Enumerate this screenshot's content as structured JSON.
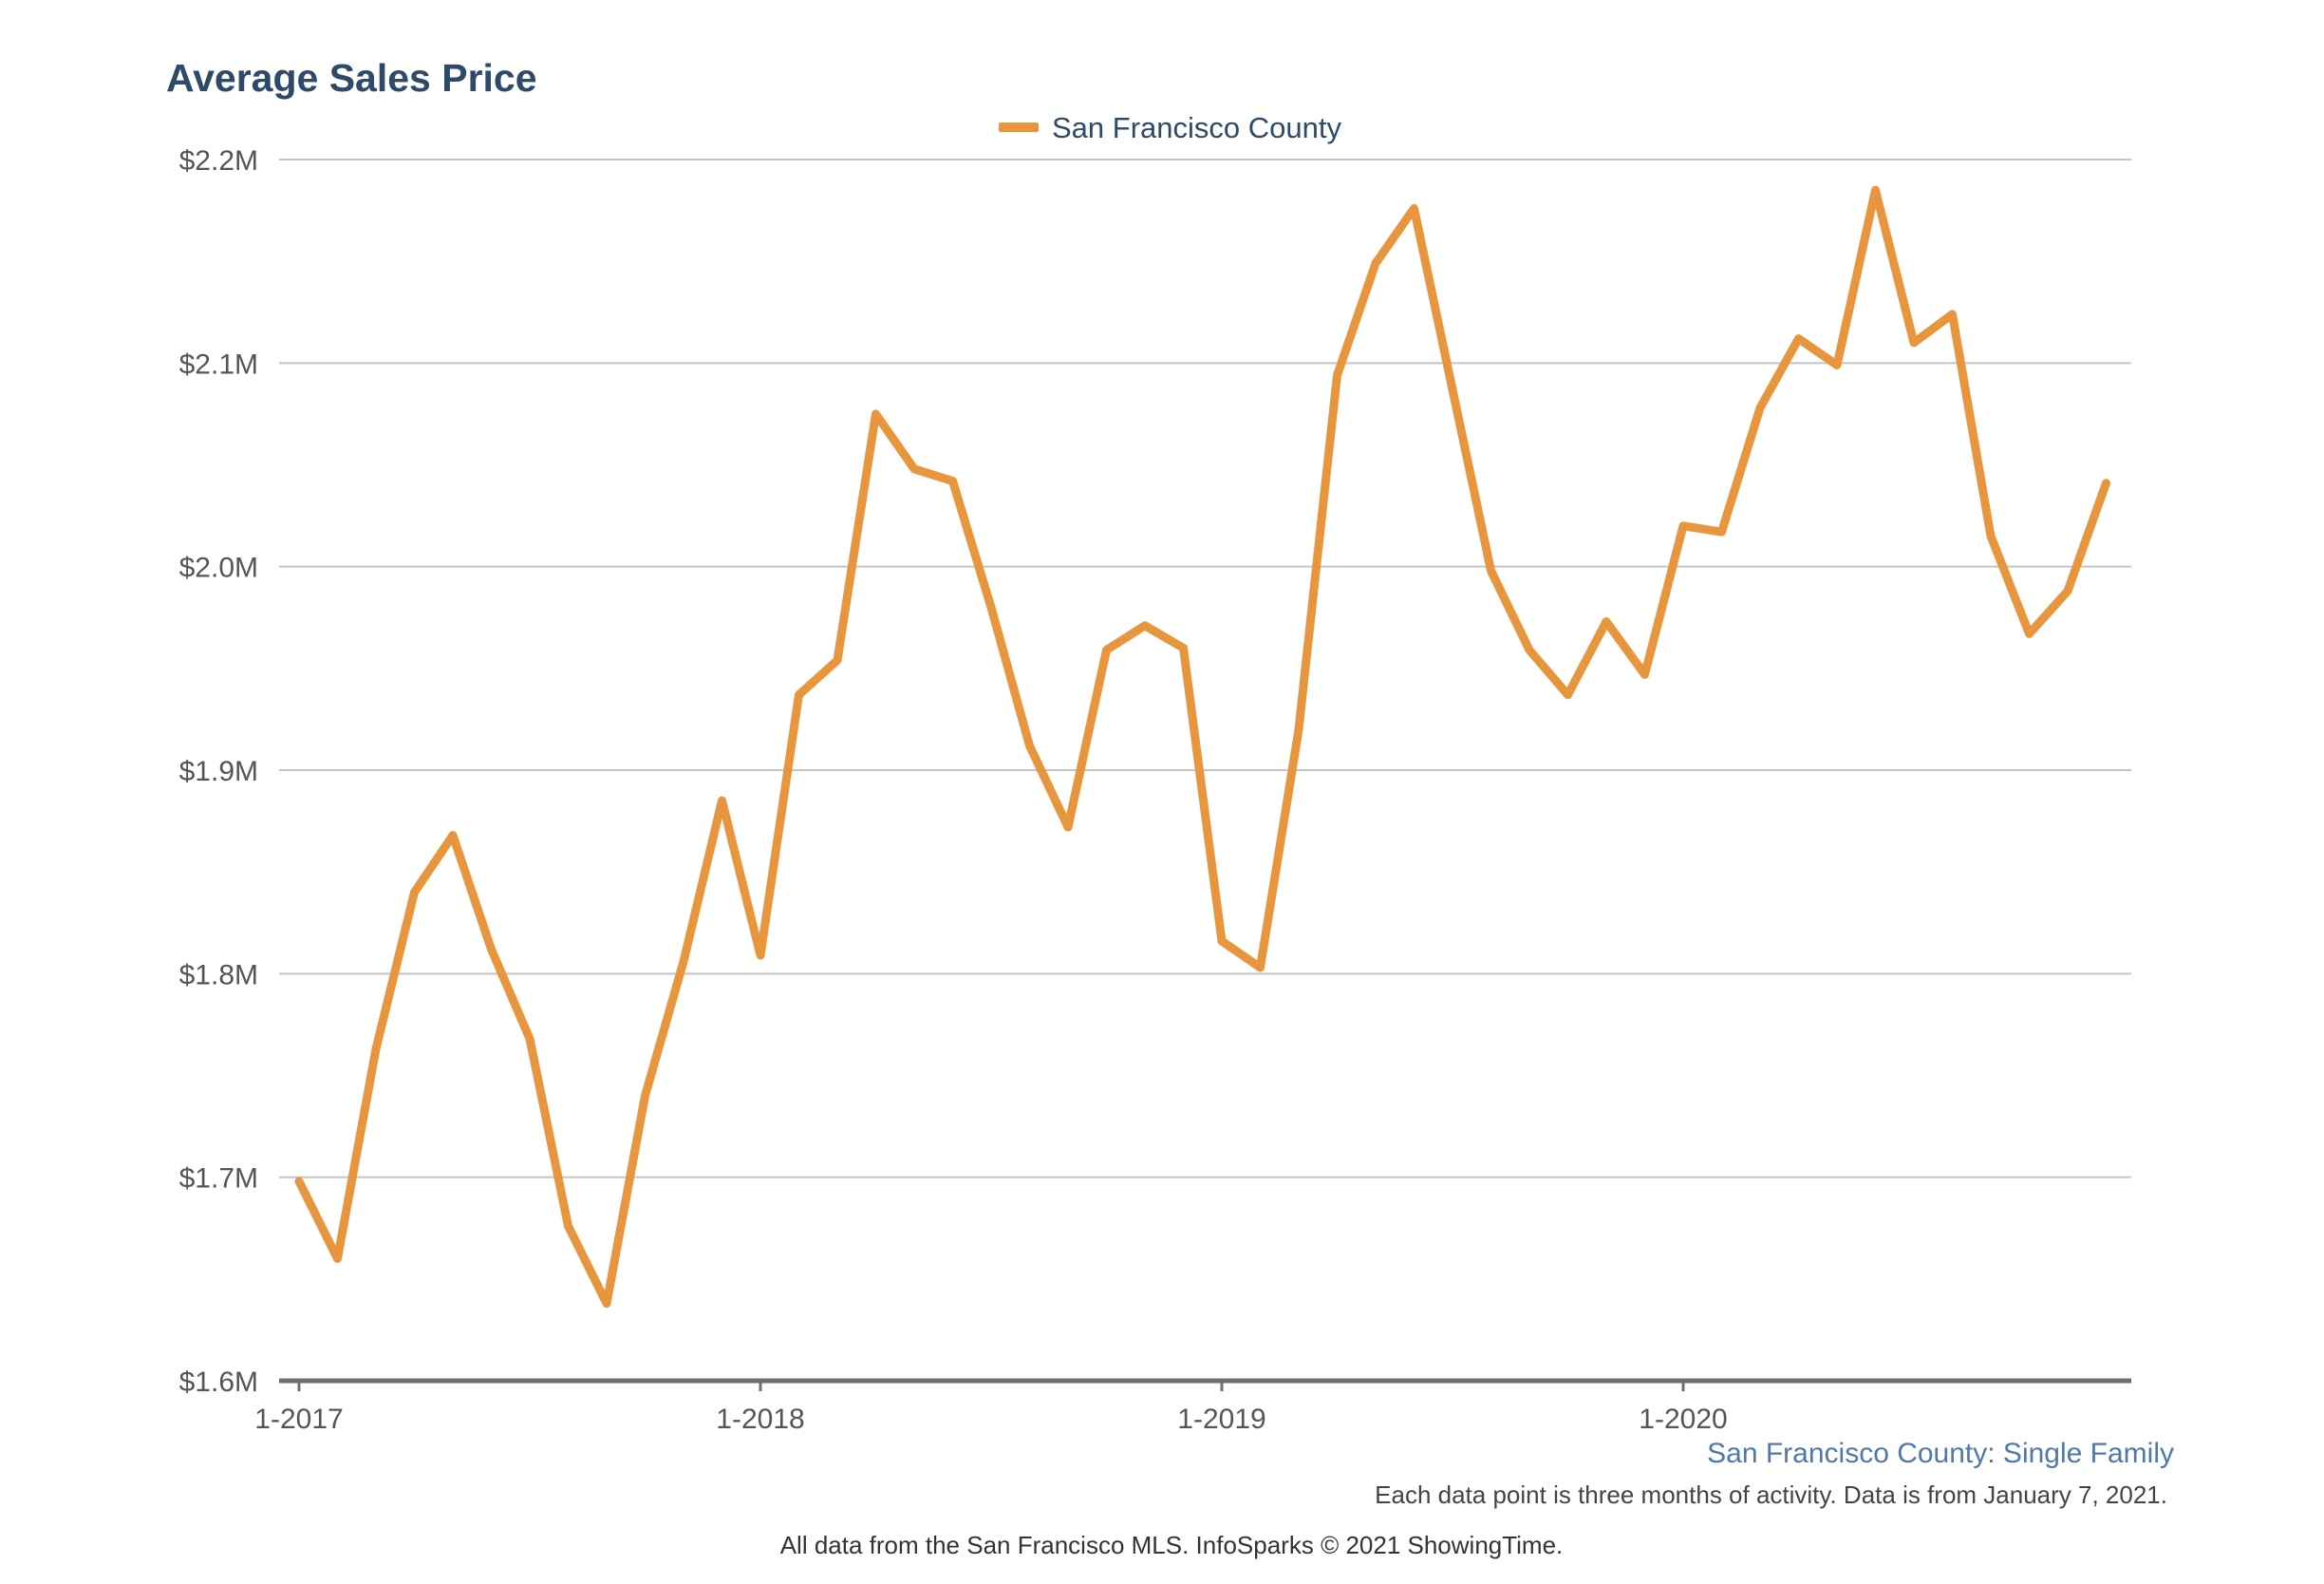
{
  "chart_data": {
    "type": "line",
    "title": "Average Sales Price",
    "xlabel": "",
    "ylabel": "",
    "ylim": [
      1600000,
      2200000
    ],
    "y_ticks": [
      {
        "value": 1600000,
        "label": "$1.6M"
      },
      {
        "value": 1700000,
        "label": "$1.7M"
      },
      {
        "value": 1800000,
        "label": "$1.8M"
      },
      {
        "value": 1900000,
        "label": "$1.9M"
      },
      {
        "value": 2000000,
        "label": "$2.0M"
      },
      {
        "value": 2100000,
        "label": "$2.1M"
      },
      {
        "value": 2200000,
        "label": "$2.2M"
      }
    ],
    "x_ticks": [
      {
        "index": 0,
        "label": "1-2017"
      },
      {
        "index": 12,
        "label": "1-2018"
      },
      {
        "index": 24,
        "label": "1-2019"
      },
      {
        "index": 36,
        "label": "1-2020"
      }
    ],
    "grid": true,
    "legend_position": "top-center",
    "series": [
      {
        "name": "San Francisco County",
        "color": "#e8963e",
        "values": [
          1698000,
          1660000,
          1763000,
          1840000,
          1868000,
          1812000,
          1768000,
          1676000,
          1638000,
          1740000,
          1806000,
          1885000,
          1809000,
          1937000,
          1954000,
          2075000,
          2048000,
          2042000,
          1980000,
          1912000,
          1872000,
          1959000,
          1971000,
          1960000,
          1816000,
          1803000,
          1920000,
          2094000,
          2149000,
          2176000,
          2087000,
          1998000,
          1959000,
          1937000,
          1973000,
          1947000,
          2020000,
          2017000,
          2078000,
          2112000,
          2099000,
          2185000,
          2110000,
          2124000,
          2015000,
          1967000,
          1988000,
          2041000
        ]
      }
    ]
  },
  "subtitle": "San Francisco County: Single Family",
  "note": "Each data point is three months of activity. Data is from January 7, 2021.",
  "credit": "All data from the San Francisco MLS. InfoSparks © 2021 ShowingTime."
}
